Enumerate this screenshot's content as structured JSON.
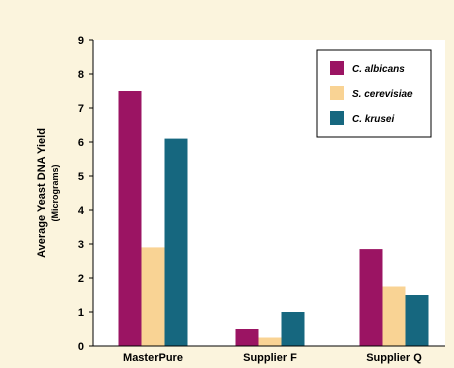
{
  "chart_data": {
    "type": "bar",
    "categories": [
      "MasterPure",
      "Supplier F",
      "Supplier Q"
    ],
    "series": [
      {
        "name": "C. albicans",
        "values": [
          7.5,
          0.5,
          2.85
        ],
        "color": "#9b1463"
      },
      {
        "name": "S. cerevisiae",
        "values": [
          2.9,
          0.25,
          1.75
        ],
        "color": "#f9d394"
      },
      {
        "name": "C. krusei",
        "values": [
          6.1,
          1.0,
          1.5
        ],
        "color": "#16677f"
      }
    ],
    "ylabel": "Average Yeast DNA Yield",
    "ylabel_sub": "(Micrograms)",
    "xlabel": "",
    "title": "",
    "ylim": [
      0,
      9
    ],
    "yticks": [
      "0",
      "1",
      "2",
      "3",
      "4",
      "5",
      "6",
      "7",
      "8",
      "9"
    ],
    "grid": false,
    "legend_position": "top-right"
  },
  "colors": {
    "background": "#fbf4dd",
    "plot_background": "#ffffff",
    "axis": "#000000"
  }
}
